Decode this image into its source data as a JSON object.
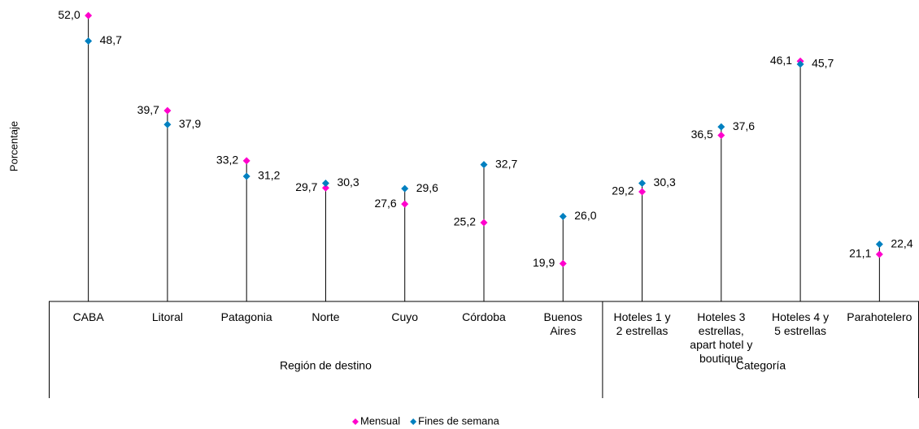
{
  "chart_data": {
    "type": "dot",
    "y_label": "Porcentaje",
    "categories": [
      "CABA",
      "Litoral",
      "Patagonia",
      "Norte",
      "Cuyo",
      "Córdoba",
      "Buenos\nAires",
      "Hoteles 1 y\n2 estrellas",
      "Hoteles 3\nestrellas,\napart hotel y\nboutique",
      "Hoteles 4 y\n5 estrellas",
      "Parahotelero"
    ],
    "groups": [
      {
        "name": "Región de destino",
        "count": 7
      },
      {
        "name": "Categoría",
        "count": 4
      }
    ],
    "series": [
      {
        "name": "Mensual",
        "color": "#ff00cc",
        "label_color": "#d6007a",
        "label_side": "left",
        "values": [
          52.0,
          39.7,
          33.2,
          29.7,
          27.6,
          25.2,
          19.9,
          29.2,
          36.5,
          46.1,
          21.1
        ],
        "value_labels": [
          "52,0",
          "39,7",
          "33,2",
          "29,7",
          "27,6",
          "25,2",
          "19,9",
          "29,2",
          "36,5",
          "46,1",
          "21,1"
        ]
      },
      {
        "name": "Fines de semana",
        "color": "#0080c0",
        "label_color": "#0a7fbf",
        "label_side": "right",
        "values": [
          48.7,
          37.9,
          31.2,
          30.3,
          29.6,
          32.7,
          26.0,
          30.3,
          37.6,
          45.7,
          22.4
        ],
        "value_labels": [
          "48,7",
          "37,9",
          "31,2",
          "30,3",
          "29,6",
          "32,7",
          "26,0",
          "30,3",
          "37,6",
          "45,7",
          "22,4"
        ]
      }
    ],
    "ylim": [
      15,
      55
    ],
    "legend": "bottom"
  }
}
